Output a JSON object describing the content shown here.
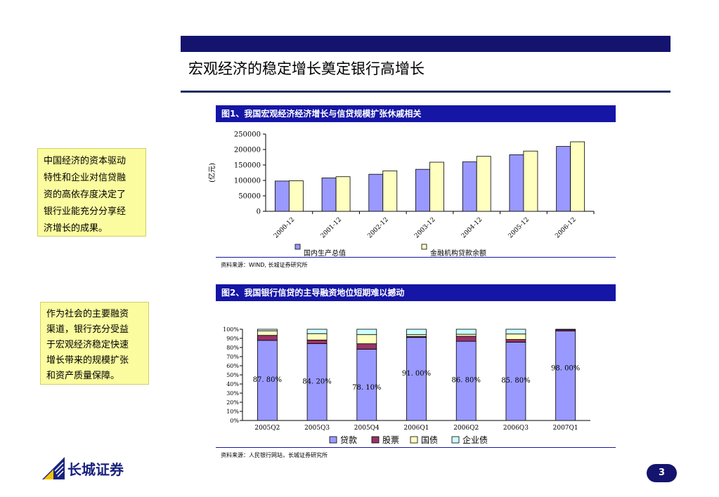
{
  "slide": {
    "title": "宏观经济的稳定增长奠定银行高增长",
    "page_number": "3",
    "logo_text": "长城证券"
  },
  "notes": [
    {
      "lines": [
        "中国经济的资本驱动",
        "特性和企业对信贷融",
        "资的高依存度决定了",
        "银行业能充分分享经",
        "济增长的成果。"
      ]
    },
    {
      "lines": [
        "作为社会的主要融资",
        "渠道，银行充分受益",
        "于宏观经济稳定快速",
        "增长带来的规模扩张",
        "和资产质量保障。"
      ]
    }
  ],
  "figures": [
    {
      "heading": "图1、我国宏观经济经济增长与信贷规模扩张休戚相关",
      "source": "资料来源：WIND, 长城证券研究所"
    },
    {
      "heading": "图2、我国银行信贷的主导融资地位短期难以撼动",
      "source": "资料来源：人民银行网站，长城证券研究所"
    }
  ],
  "chart_data": [
    {
      "type": "bar",
      "categories": [
        "2000-12",
        "2001-12",
        "2002-12",
        "2003-12",
        "2004-12",
        "2005-12",
        "2006-12"
      ],
      "series": [
        {
          "name": "国内生产总值",
          "values": [
            98000,
            108000,
            120000,
            136000,
            160000,
            183000,
            210000
          ],
          "color": "#9999ff"
        },
        {
          "name": "金融机构贷款余额",
          "values": [
            99000,
            112000,
            131000,
            159000,
            178000,
            195000,
            225000
          ],
          "color": "#ffffc0"
        }
      ],
      "ylabel": "(亿元)",
      "ylim": [
        0,
        250000
      ],
      "yticks": [
        "0",
        "50000",
        "100000",
        "150000",
        "200000",
        "250000"
      ],
      "grid": false,
      "legend": "bottom"
    },
    {
      "type": "bar",
      "stacked": true,
      "categories": [
        "2005Q2",
        "2005Q3",
        "2005Q4",
        "2006Q1",
        "2006Q2",
        "2006Q3",
        "2007Q1"
      ],
      "series": [
        {
          "name": "贷款",
          "values": [
            87.8,
            84.2,
            78.1,
            91.0,
            86.8,
            85.8,
            98.0
          ],
          "color": "#9999ff"
        },
        {
          "name": "股票",
          "values": [
            5.5,
            4.0,
            6.0,
            1.0,
            5.5,
            3.0,
            1.5
          ],
          "color": "#993366"
        },
        {
          "name": "国债",
          "values": [
            5.0,
            7.0,
            10.0,
            2.0,
            2.2,
            6.0,
            0.0
          ],
          "color": "#ffffc0"
        },
        {
          "name": "企业债",
          "values": [
            1.7,
            4.8,
            5.9,
            6.0,
            5.5,
            5.2,
            0.5
          ],
          "color": "#ccffff"
        }
      ],
      "data_labels": [
        "87. 80%",
        "84. 20%",
        "78. 10%",
        "91. 00%",
        "86. 80%",
        "85. 80%",
        "98. 00%"
      ],
      "ylim": [
        0,
        100
      ],
      "yticks": [
        "0%",
        "10%",
        "20%",
        "30%",
        "40%",
        "50%",
        "60%",
        "70%",
        "80%",
        "90%",
        "100%"
      ],
      "grid": false,
      "legend": "bottom"
    }
  ]
}
